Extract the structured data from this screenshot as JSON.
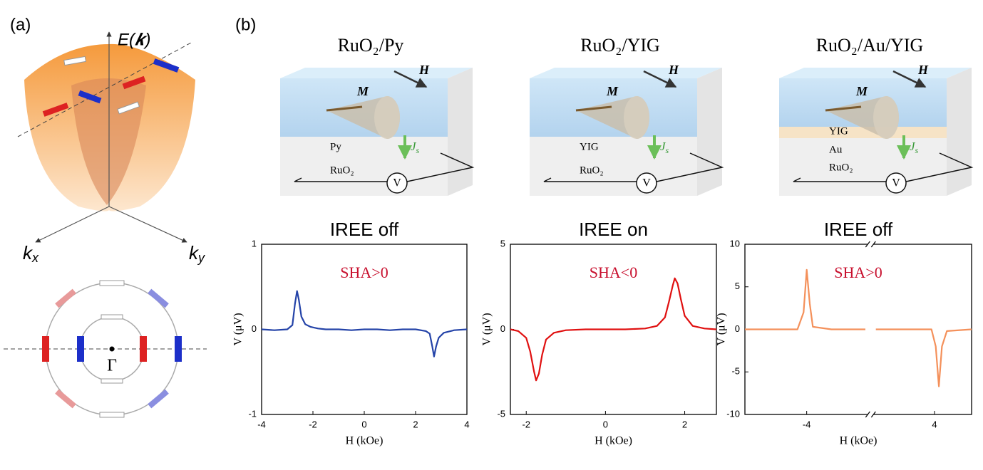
{
  "panel_labels": [
    "(a)",
    "(b)"
  ],
  "band": {
    "energy_axis": "E(𝒌)",
    "kx": {
      "symbol": "k",
      "subscript": "x"
    },
    "ky": {
      "symbol": "k",
      "subscript": "y"
    },
    "gamma": "Γ"
  },
  "devices": [
    {
      "title": "RuO₂/Py",
      "field": "H",
      "magnetization": "M",
      "layers": [
        "Py",
        "RuO₂"
      ],
      "current": {
        "symbol": "J",
        "subscript": "s"
      },
      "voltmeter": "V"
    },
    {
      "title": "RuO₂/YIG",
      "field": "H",
      "magnetization": "M",
      "layers": [
        "YIG",
        "RuO₂"
      ],
      "current": {
        "symbol": "J",
        "subscript": "s"
      },
      "voltmeter": "V"
    },
    {
      "title": "RuO₂/Au/YIG",
      "field": "H",
      "magnetization": "M",
      "layers": [
        "YIG",
        "Au",
        "RuO₂"
      ],
      "current": {
        "symbol": "J",
        "subscript": "s"
      },
      "voltmeter": "V"
    }
  ],
  "chart_data": [
    {
      "type": "line",
      "title": "IREE off",
      "annotation": "SHA>0",
      "annotation_color": "#c8102e",
      "xlabel": "H (kOe)",
      "ylabel": "V (μV)",
      "x": [
        -4,
        -3.5,
        -3,
        -2.8,
        -2.7,
        -2.62,
        -2.55,
        -2.45,
        -2.3,
        -2.1,
        -1.8,
        -1.5,
        -1,
        -0.5,
        0,
        0.5,
        1,
        1.5,
        2,
        2.4,
        2.55,
        2.65,
        2.72,
        2.8,
        2.9,
        3.1,
        3.5,
        4
      ],
      "series": [
        {
          "color": "#2443a8",
          "values": [
            0,
            -0.01,
            0,
            0.05,
            0.3,
            0.45,
            0.35,
            0.15,
            0.06,
            0.03,
            0.01,
            0,
            0,
            -0.01,
            0,
            0,
            -0.01,
            0,
            0,
            -0.02,
            -0.05,
            -0.2,
            -0.32,
            -0.2,
            -0.1,
            -0.04,
            -0.01,
            0
          ]
        }
      ],
      "xlim": [
        -4,
        4
      ],
      "xticks": [
        -4,
        -2,
        0,
        2,
        4
      ],
      "ylim": [
        -1,
        1
      ],
      "yticks": [
        -1,
        0,
        1
      ]
    },
    {
      "type": "line",
      "title": "IREE on",
      "annotation": "SHA<0",
      "annotation_color": "#c8102e",
      "xlabel": "H (kOe)",
      "ylabel": "V (μV)",
      "x": [
        -2.4,
        -2.2,
        -2,
        -1.9,
        -1.8,
        -1.75,
        -1.68,
        -1.6,
        -1.5,
        -1.3,
        -1,
        -0.5,
        0,
        0.5,
        1,
        1.3,
        1.5,
        1.6,
        1.7,
        1.75,
        1.82,
        1.9,
        2,
        2.2,
        2.5,
        2.8
      ],
      "series": [
        {
          "color": "#e01010",
          "values": [
            0,
            -0.1,
            -0.5,
            -1.3,
            -2.5,
            -3,
            -2.6,
            -1.5,
            -0.6,
            -0.2,
            -0.05,
            0,
            0,
            0,
            0.05,
            0.2,
            0.7,
            1.6,
            2.6,
            3,
            2.7,
            1.8,
            0.8,
            0.2,
            0.05,
            0
          ]
        }
      ],
      "xlim": [
        -2.4,
        2.8
      ],
      "xticks": [
        -2,
        0,
        2
      ],
      "ylim": [
        -5,
        5
      ],
      "yticks": [
        -5,
        0,
        5
      ]
    },
    {
      "type": "line",
      "title": "IREE off",
      "annotation": "SHA>0",
      "annotation_color": "#c8102e",
      "xlabel": "H (kOe)",
      "ylabel": "V (μV)",
      "x": [
        -5,
        -4.5,
        -4.15,
        -4.05,
        -4,
        -3.95,
        -3.9,
        -3.6,
        -3.05,
        0,
        3.05,
        3.5,
        3.95,
        4.02,
        4.07,
        4.12,
        4.2,
        4.6
      ],
      "series": [
        {
          "color": "#f4905a",
          "values": [
            0,
            0,
            0,
            2,
            7,
            3,
            0.3,
            0,
            0,
            null,
            0,
            0,
            0,
            -2,
            -6.7,
            -2,
            -0.2,
            0
          ]
        }
      ],
      "xlim": [
        -5,
        4.6
      ],
      "xbreak": [
        -3,
        3
      ],
      "xticks": [
        -4,
        4
      ],
      "ylim": [
        -10,
        10
      ],
      "yticks": [
        -10,
        -5,
        0,
        5,
        10
      ]
    }
  ]
}
